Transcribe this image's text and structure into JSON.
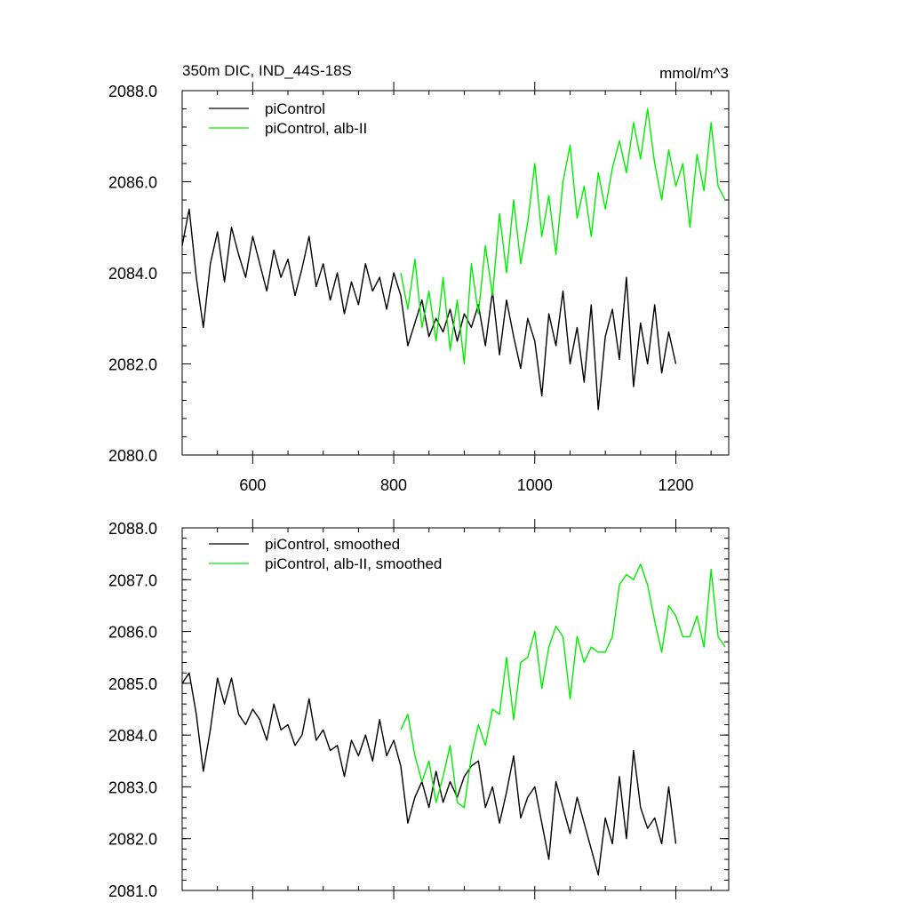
{
  "chart_data": [
    {
      "type": "line",
      "title": "350m DIC, IND_44S-18S",
      "units": "mmol/m^3",
      "xlim": [
        500,
        1275
      ],
      "ylim": [
        2080,
        2088
      ],
      "xticks": [
        600,
        800,
        1000,
        1200
      ],
      "xtick_labels": [
        "600",
        "800",
        "1000",
        "1200"
      ],
      "yticks": [
        2080,
        2082,
        2084,
        2086,
        2088
      ],
      "ytick_labels": [
        "2080.0",
        "2082.0",
        "2084.0",
        "2086.0",
        "2088.0"
      ],
      "legend_position": "top-left",
      "series": [
        {
          "name": "piControl",
          "color": "#000000",
          "x": [
            500,
            510,
            520,
            530,
            540,
            550,
            560,
            570,
            580,
            590,
            600,
            610,
            620,
            630,
            640,
            650,
            660,
            670,
            680,
            690,
            700,
            710,
            720,
            730,
            740,
            750,
            760,
            770,
            780,
            790,
            800,
            810,
            820,
            830,
            840,
            850,
            860,
            870,
            880,
            890,
            900,
            910,
            920,
            930,
            940,
            950,
            960,
            970,
            980,
            990,
            1000,
            1010,
            1020,
            1030,
            1040,
            1050,
            1060,
            1070,
            1080,
            1090,
            1100,
            1110,
            1120,
            1130,
            1140,
            1150,
            1160,
            1170,
            1180,
            1190,
            1200
          ],
          "y": [
            2084.6,
            2085.4,
            2083.9,
            2082.8,
            2084.2,
            2084.9,
            2083.8,
            2085.0,
            2084.4,
            2083.9,
            2084.8,
            2084.2,
            2083.6,
            2084.5,
            2083.9,
            2084.3,
            2083.5,
            2084.1,
            2084.8,
            2083.7,
            2084.2,
            2083.4,
            2084.0,
            2083.1,
            2083.8,
            2083.3,
            2084.2,
            2083.6,
            2083.9,
            2083.2,
            2084.0,
            2083.5,
            2082.4,
            2082.9,
            2083.4,
            2082.6,
            2083.0,
            2082.7,
            2083.2,
            2082.5,
            2083.1,
            2082.8,
            2083.3,
            2082.4,
            2083.6,
            2082.2,
            2083.4,
            2082.6,
            2081.9,
            2083.0,
            2082.5,
            2081.3,
            2083.1,
            2082.4,
            2083.6,
            2082.0,
            2082.8,
            2081.6,
            2083.3,
            2081.0,
            2082.6,
            2083.2,
            2082.1,
            2083.9,
            2081.5,
            2082.9,
            2082.0,
            2083.3,
            2081.8,
            2082.7,
            2082.0
          ]
        },
        {
          "name": "piControl, alb-II",
          "color": "#00ee00",
          "x": [
            810,
            820,
            830,
            840,
            850,
            860,
            870,
            880,
            890,
            900,
            910,
            920,
            930,
            940,
            950,
            960,
            970,
            980,
            990,
            1000,
            1010,
            1020,
            1030,
            1040,
            1050,
            1060,
            1070,
            1080,
            1090,
            1100,
            1110,
            1120,
            1130,
            1140,
            1150,
            1160,
            1170,
            1180,
            1190,
            1200,
            1210,
            1220,
            1230,
            1240,
            1250,
            1260,
            1270
          ],
          "y": [
            2084.0,
            2083.2,
            2084.3,
            2082.8,
            2083.6,
            2082.5,
            2083.9,
            2082.3,
            2083.4,
            2082.0,
            2084.2,
            2083.1,
            2084.6,
            2083.5,
            2085.3,
            2084.0,
            2085.6,
            2084.2,
            2085.1,
            2086.4,
            2084.8,
            2085.7,
            2084.4,
            2086.0,
            2086.8,
            2085.2,
            2085.9,
            2084.8,
            2086.2,
            2085.4,
            2086.3,
            2086.9,
            2086.2,
            2087.3,
            2086.5,
            2087.6,
            2086.4,
            2085.6,
            2086.7,
            2085.9,
            2086.4,
            2085.0,
            2086.6,
            2085.8,
            2087.3,
            2085.9,
            2085.6
          ]
        }
      ]
    },
    {
      "type": "line",
      "title": "",
      "xlim": [
        500,
        1275
      ],
      "ylim": [
        2081,
        2088
      ],
      "xticks": [
        600,
        800,
        1000,
        1200
      ],
      "xtick_labels": [],
      "yticks": [
        2081,
        2082,
        2083,
        2084,
        2085,
        2086,
        2087,
        2088
      ],
      "ytick_labels": [
        "2081.0",
        "2082.0",
        "2083.0",
        "2084.0",
        "2085.0",
        "2086.0",
        "2087.0",
        "2088.0"
      ],
      "legend_position": "top-left",
      "series": [
        {
          "name": "piControl, smoothed",
          "color": "#000000",
          "x": [
            500,
            510,
            520,
            530,
            540,
            550,
            560,
            570,
            580,
            590,
            600,
            610,
            620,
            630,
            640,
            650,
            660,
            670,
            680,
            690,
            700,
            710,
            720,
            730,
            740,
            750,
            760,
            770,
            780,
            790,
            800,
            810,
            820,
            830,
            840,
            850,
            860,
            870,
            880,
            890,
            900,
            910,
            920,
            930,
            940,
            950,
            960,
            970,
            980,
            990,
            1000,
            1010,
            1020,
            1030,
            1040,
            1050,
            1060,
            1070,
            1080,
            1090,
            1100,
            1110,
            1120,
            1130,
            1140,
            1150,
            1160,
            1170,
            1180,
            1190,
            1200
          ],
          "y": [
            2085.0,
            2085.2,
            2084.4,
            2083.3,
            2084.1,
            2085.1,
            2084.6,
            2085.1,
            2084.4,
            2084.2,
            2084.5,
            2084.3,
            2083.9,
            2084.6,
            2084.1,
            2084.2,
            2083.8,
            2084.0,
            2084.7,
            2083.9,
            2084.1,
            2083.7,
            2083.8,
            2083.2,
            2083.9,
            2083.6,
            2084.0,
            2083.5,
            2084.3,
            2083.6,
            2083.9,
            2083.4,
            2082.3,
            2082.8,
            2083.1,
            2082.6,
            2083.3,
            2082.7,
            2083.1,
            2082.8,
            2083.2,
            2083.4,
            2083.5,
            2082.6,
            2083.0,
            2082.3,
            2082.9,
            2083.6,
            2082.4,
            2082.8,
            2083.0,
            2082.3,
            2081.6,
            2083.1,
            2082.6,
            2082.1,
            2082.8,
            2082.3,
            2081.8,
            2081.3,
            2082.4,
            2081.9,
            2083.2,
            2082.0,
            2083.7,
            2082.6,
            2082.2,
            2082.4,
            2081.9,
            2083.0,
            2081.9
          ]
        },
        {
          "name": "piControl, alb-II, smoothed",
          "color": "#00ee00",
          "x": [
            810,
            820,
            830,
            840,
            850,
            860,
            870,
            880,
            890,
            900,
            910,
            920,
            930,
            940,
            950,
            960,
            970,
            980,
            990,
            1000,
            1010,
            1020,
            1030,
            1040,
            1050,
            1060,
            1070,
            1080,
            1090,
            1100,
            1110,
            1120,
            1130,
            1140,
            1150,
            1160,
            1170,
            1180,
            1190,
            1200,
            1210,
            1220,
            1230,
            1240,
            1250,
            1260,
            1270
          ],
          "y": [
            2084.1,
            2084.4,
            2083.6,
            2083.1,
            2083.5,
            2082.7,
            2083.2,
            2083.8,
            2082.7,
            2082.6,
            2083.6,
            2084.2,
            2083.8,
            2084.5,
            2084.4,
            2085.5,
            2084.3,
            2085.4,
            2085.5,
            2086.0,
            2084.9,
            2085.7,
            2086.1,
            2085.9,
            2084.7,
            2085.9,
            2085.4,
            2085.7,
            2085.6,
            2085.6,
            2085.9,
            2086.9,
            2087.1,
            2087.0,
            2087.3,
            2086.9,
            2086.2,
            2085.6,
            2086.5,
            2086.3,
            2085.9,
            2085.9,
            2086.3,
            2085.7,
            2087.2,
            2085.9,
            2085.7
          ]
        }
      ]
    }
  ]
}
